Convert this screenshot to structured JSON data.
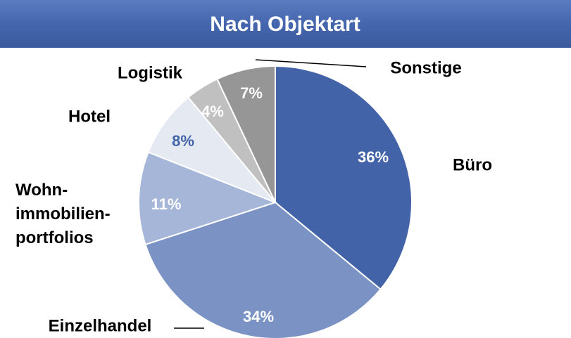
{
  "chart_data": {
    "type": "pie",
    "title": "Nach Objektart",
    "categories": [
      "Büro",
      "Einzelhandel",
      "Wohn-\nimmobilien-\nportfolios",
      "Hotel",
      "Logistik",
      "Sonstige"
    ],
    "values": [
      36,
      34,
      11,
      8,
      4,
      7
    ],
    "value_labels": [
      "36%",
      "34%",
      "11%",
      "8%",
      "4%",
      "7%"
    ],
    "colors": [
      "#4263a8",
      "#7a93c4",
      "#a5b6d8",
      "#e4e9f2",
      "#c0c0c0",
      "#969696"
    ]
  }
}
